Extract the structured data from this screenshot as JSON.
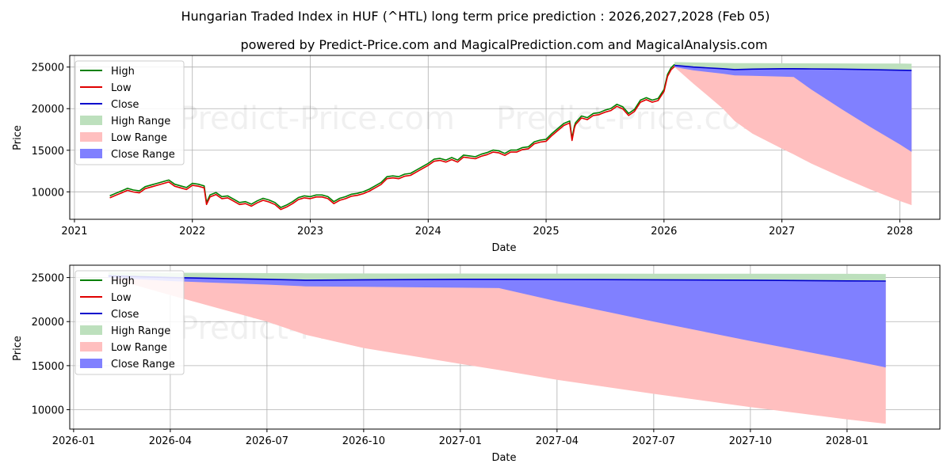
{
  "title": "Hungarian Traded Index in HUF (^HTL) long term price prediction : 2026,2027,2028 (Feb 05)",
  "subtitle": "powered by Predict-Price.com and MagicalPrediction.com and MagicalAnalysis.com",
  "watermark": "Predict-Price.com",
  "colors": {
    "high": "#008000",
    "low": "#e00000",
    "close": "#0000cc",
    "high_range": "#bde0bd",
    "low_range": "#ffbfbf",
    "close_range": "#8080ff",
    "grid": "#b0b0b0"
  },
  "chart_data": [
    {
      "type": "line",
      "id": "full",
      "xlabel": "Date",
      "ylabel": "Price",
      "xlim": [
        2020.96,
        2028.34
      ],
      "ylim": [
        6700,
        26400
      ],
      "x_ticks": [
        2021,
        2022,
        2023,
        2024,
        2025,
        2026,
        2027,
        2028
      ],
      "x_tick_labels": [
        "2021",
        "2022",
        "2023",
        "2024",
        "2025",
        "2026",
        "2027",
        "2028"
      ],
      "y_ticks": [
        10000,
        15000,
        20000,
        25000
      ],
      "y_tick_labels": [
        "10000",
        "15000",
        "20000",
        "25000"
      ],
      "grid": true,
      "legend_position": "top-left",
      "legend": [
        "High",
        "Low",
        "Close",
        "High Range",
        "Low Range",
        "Close Range"
      ],
      "history": {
        "x": [
          2021.3,
          2021.35,
          2021.4,
          2021.45,
          2021.5,
          2021.55,
          2021.6,
          2021.65,
          2021.7,
          2021.75,
          2021.8,
          2021.85,
          2021.9,
          2021.95,
          2022.0,
          2022.05,
          2022.1,
          2022.12,
          2022.15,
          2022.2,
          2022.25,
          2022.3,
          2022.35,
          2022.4,
          2022.45,
          2022.5,
          2022.55,
          2022.6,
          2022.65,
          2022.7,
          2022.75,
          2022.8,
          2022.85,
          2022.9,
          2022.95,
          2023.0,
          2023.05,
          2023.1,
          2023.15,
          2023.2,
          2023.25,
          2023.3,
          2023.35,
          2023.4,
          2023.45,
          2023.5,
          2023.55,
          2023.6,
          2023.65,
          2023.7,
          2023.75,
          2023.8,
          2023.85,
          2023.9,
          2023.95,
          2024.0,
          2024.05,
          2024.1,
          2024.15,
          2024.2,
          2024.25,
          2024.3,
          2024.35,
          2024.4,
          2024.45,
          2024.5,
          2024.55,
          2024.6,
          2024.65,
          2024.7,
          2024.75,
          2024.8,
          2024.85,
          2024.9,
          2024.95,
          2025.0,
          2025.05,
          2025.1,
          2025.15,
          2025.2,
          2025.22,
          2025.24,
          2025.25,
          2025.3,
          2025.35,
          2025.4,
          2025.45,
          2025.5,
          2025.55,
          2025.6,
          2025.65,
          2025.7,
          2025.75,
          2025.8,
          2025.85,
          2025.9,
          2025.95,
          2026.0,
          2026.03,
          2026.06,
          2026.09
        ],
        "close": [
          9400,
          9700,
          10000,
          10300,
          10100,
          10000,
          10500,
          10700,
          10900,
          11100,
          11300,
          10800,
          10600,
          10400,
          10900,
          10800,
          10600,
          8600,
          9500,
          9800,
          9300,
          9400,
          9000,
          8600,
          8700,
          8400,
          8800,
          9100,
          8900,
          8600,
          8000,
          8300,
          8700,
          9200,
          9400,
          9300,
          9500,
          9500,
          9300,
          8700,
          9100,
          9300,
          9600,
          9700,
          9900,
          10200,
          10600,
          11000,
          11700,
          11800,
          11700,
          12000,
          12100,
          12500,
          12900,
          13300,
          13800,
          13900,
          13700,
          14000,
          13700,
          14300,
          14200,
          14100,
          14400,
          14600,
          14900,
          14800,
          14500,
          14900,
          14900,
          15200,
          15300,
          15900,
          16100,
          16200,
          16900,
          17500,
          18100,
          18400,
          16300,
          17800,
          18200,
          19000,
          18800,
          19300,
          19400,
          19700,
          19900,
          20400,
          20100,
          19300,
          19800,
          20900,
          21200,
          20900,
          21100,
          22200,
          24000,
          24800,
          25200
        ]
      },
      "forecast": {
        "x": [
          2026.09,
          2026.25,
          2026.5,
          2026.6,
          2026.75,
          2027.0,
          2027.1,
          2027.25,
          2027.5,
          2027.75,
          2028.0,
          2028.1
        ],
        "close": [
          25200,
          25000,
          24800,
          24700,
          24750,
          24800,
          24800,
          24780,
          24750,
          24700,
          24620,
          24600
        ],
        "high_upper": [
          25600,
          25550,
          25500,
          25480,
          25470,
          25460,
          25450,
          25450,
          25440,
          25430,
          25420,
          25400
        ],
        "low_lower": [
          25000,
          23000,
          20000,
          18500,
          17000,
          15200,
          14500,
          13400,
          11800,
          10300,
          8900,
          8400
        ],
        "close_lower": [
          25000,
          24600,
          24200,
          24000,
          23950,
          23850,
          23800,
          22300,
          20000,
          17800,
          15700,
          14800
        ]
      }
    },
    {
      "type": "line",
      "id": "zoom",
      "xlabel": "Date",
      "ylabel": "Price",
      "xlim": [
        2025.99,
        2028.24
      ],
      "ylim": [
        7800,
        26400
      ],
      "x_ticks": [
        2026.0,
        2026.25,
        2026.5,
        2026.75,
        2027.0,
        2027.25,
        2027.5,
        2027.75,
        2028.0
      ],
      "x_tick_labels": [
        "2026-01",
        "2026-04",
        "2026-07",
        "2026-10",
        "2027-01",
        "2027-04",
        "2027-07",
        "2027-10",
        "2028-01"
      ],
      "y_ticks": [
        10000,
        15000,
        20000,
        25000
      ],
      "y_tick_labels": [
        "10000",
        "15000",
        "20000",
        "25000"
      ],
      "grid": true,
      "legend_position": "top-left",
      "legend": [
        "High",
        "Low",
        "Close",
        "High Range",
        "Low Range",
        "Close Range"
      ]
    }
  ]
}
